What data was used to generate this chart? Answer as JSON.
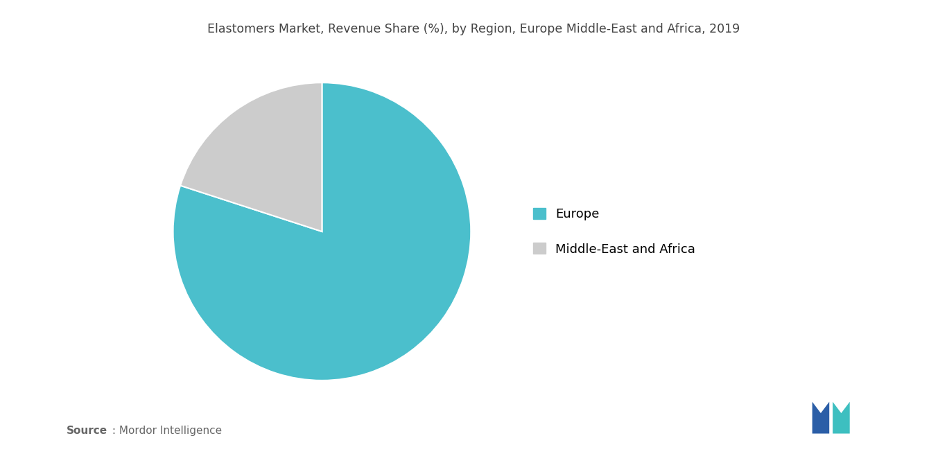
{
  "title": "Elastomers Market, Revenue Share (%), by Region, Europe Middle-East and Africa, 2019",
  "slices": [
    80.0,
    20.0
  ],
  "labels": [
    "Europe",
    "Middle-East and Africa"
  ],
  "colors": [
    "#4BBFCC",
    "#CCCCCC"
  ],
  "startangle": 90,
  "source_bold": "Source",
  "source_rest": " : Mordor Intelligence",
  "background_color": "#FFFFFF",
  "title_fontsize": 12.5,
  "legend_fontsize": 13
}
